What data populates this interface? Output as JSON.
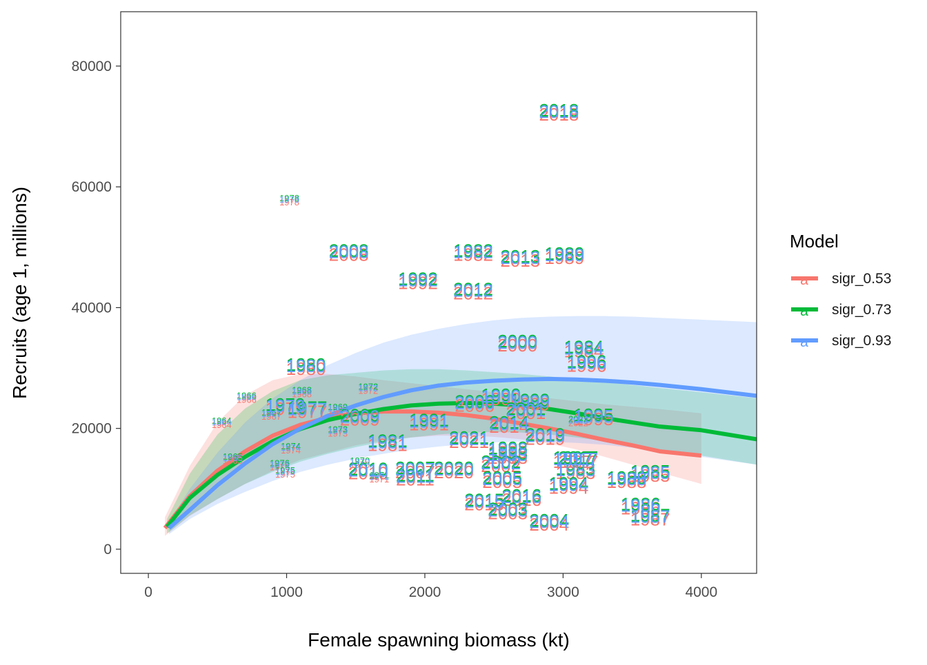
{
  "chart_data": {
    "type": "scatter",
    "title": "",
    "xlabel": "Female spawning biomass (kt)",
    "ylabel": "Recruits (age 1, millions)",
    "xlim": [
      -200,
      4400
    ],
    "ylim": [
      -4000,
      89000
    ],
    "x_ticks": [
      0,
      1000,
      2000,
      3000,
      4000
    ],
    "x_tick_labels": [
      "0",
      "1000",
      "2000",
      "3000",
      "4000"
    ],
    "y_ticks": [
      0,
      20000,
      40000,
      60000,
      80000
    ],
    "y_tick_labels": [
      "0",
      "20000",
      "40000",
      "60000",
      "80000"
    ],
    "grid": false,
    "legend": {
      "title": "Model",
      "position": "right",
      "key_glyph": "a",
      "entries": [
        {
          "label": "sigr_0.53",
          "color": "#F8766D"
        },
        {
          "label": "sigr_0.73",
          "color": "#00BA38"
        },
        {
          "label": "sigr_0.93",
          "color": "#619CFF"
        }
      ]
    },
    "series": [
      {
        "name": "sigr_0.53",
        "color": "#F8766D",
        "curve": [
          [
            120,
            3500
          ],
          [
            300,
            8800
          ],
          [
            500,
            13000
          ],
          [
            700,
            16200
          ],
          [
            900,
            18800
          ],
          [
            1100,
            20600
          ],
          [
            1300,
            21800
          ],
          [
            1500,
            22500
          ],
          [
            1700,
            22800
          ],
          [
            1900,
            22800
          ],
          [
            2100,
            22600
          ],
          [
            2300,
            22200
          ],
          [
            2500,
            21600
          ],
          [
            2700,
            20800
          ],
          [
            2900,
            20000
          ],
          [
            3100,
            19100
          ],
          [
            3300,
            18100
          ],
          [
            3500,
            17200
          ],
          [
            3700,
            16200
          ],
          [
            4000,
            15500
          ]
        ],
        "band_upper": [
          [
            120,
            5300
          ],
          [
            300,
            13800
          ],
          [
            500,
            21000
          ],
          [
            700,
            25500
          ],
          [
            900,
            28000
          ],
          [
            1100,
            29000
          ],
          [
            1300,
            29000
          ],
          [
            1500,
            28600
          ],
          [
            1700,
            28000
          ],
          [
            1900,
            27500
          ],
          [
            2100,
            27000
          ],
          [
            2300,
            26500
          ],
          [
            2500,
            26000
          ],
          [
            2700,
            25500
          ],
          [
            2900,
            25000
          ],
          [
            3100,
            24500
          ],
          [
            3300,
            24000
          ],
          [
            3500,
            23600
          ],
          [
            3700,
            23200
          ],
          [
            4000,
            22500
          ]
        ],
        "band_lower": [
          [
            120,
            2200
          ],
          [
            300,
            5500
          ],
          [
            500,
            8300
          ],
          [
            700,
            10800
          ],
          [
            900,
            13000
          ],
          [
            1100,
            14800
          ],
          [
            1300,
            16000
          ],
          [
            1500,
            17200
          ],
          [
            1700,
            18000
          ],
          [
            1900,
            18500
          ],
          [
            2100,
            18800
          ],
          [
            2300,
            18800
          ],
          [
            2500,
            18600
          ],
          [
            2700,
            18200
          ],
          [
            2900,
            17500
          ],
          [
            3100,
            16500
          ],
          [
            3300,
            15300
          ],
          [
            3500,
            14000
          ],
          [
            3700,
            12700
          ],
          [
            4000,
            10800
          ]
        ]
      },
      {
        "name": "sigr_0.73",
        "color": "#00BA38",
        "curve": [
          [
            135,
            3700
          ],
          [
            300,
            8500
          ],
          [
            500,
            12300
          ],
          [
            700,
            15300
          ],
          [
            900,
            17900
          ],
          [
            1100,
            19900
          ],
          [
            1300,
            21400
          ],
          [
            1500,
            22400
          ],
          [
            1700,
            23200
          ],
          [
            1900,
            23800
          ],
          [
            2100,
            24100
          ],
          [
            2300,
            24200
          ],
          [
            2500,
            24100
          ],
          [
            2700,
            23800
          ],
          [
            2900,
            23200
          ],
          [
            3100,
            22500
          ],
          [
            3300,
            21700
          ],
          [
            3500,
            21000
          ],
          [
            3700,
            20300
          ],
          [
            4000,
            19700
          ],
          [
            4400,
            18200
          ]
        ],
        "band_upper": [
          [
            135,
            5000
          ],
          [
            300,
            12500
          ],
          [
            500,
            19000
          ],
          [
            700,
            23300
          ],
          [
            900,
            26200
          ],
          [
            1100,
            28000
          ],
          [
            1300,
            28800
          ],
          [
            1500,
            29200
          ],
          [
            1700,
            29600
          ],
          [
            1900,
            29800
          ],
          [
            2100,
            29800
          ],
          [
            2300,
            29600
          ],
          [
            2500,
            29300
          ],
          [
            2700,
            29000
          ],
          [
            2900,
            28600
          ],
          [
            3100,
            28200
          ],
          [
            3300,
            27700
          ],
          [
            3500,
            27200
          ],
          [
            3700,
            26700
          ],
          [
            4000,
            26000
          ],
          [
            4400,
            25000
          ]
        ],
        "band_lower": [
          [
            135,
            2600
          ],
          [
            300,
            5600
          ],
          [
            500,
            8300
          ],
          [
            700,
            10800
          ],
          [
            900,
            12800
          ],
          [
            1100,
            14500
          ],
          [
            1300,
            15800
          ],
          [
            1500,
            16900
          ],
          [
            1700,
            17800
          ],
          [
            1900,
            18500
          ],
          [
            2100,
            19000
          ],
          [
            2300,
            19300
          ],
          [
            2500,
            19400
          ],
          [
            2700,
            19300
          ],
          [
            2900,
            19000
          ],
          [
            3100,
            18500
          ],
          [
            3300,
            17900
          ],
          [
            3500,
            17200
          ],
          [
            3700,
            16400
          ],
          [
            4000,
            15500
          ],
          [
            4400,
            14000
          ]
        ]
      },
      {
        "name": "sigr_0.93",
        "color": "#619CFF",
        "curve": [
          [
            150,
            3500
          ],
          [
            300,
            6500
          ],
          [
            500,
            10600
          ],
          [
            700,
            14200
          ],
          [
            900,
            17400
          ],
          [
            1100,
            20000
          ],
          [
            1300,
            22100
          ],
          [
            1500,
            23800
          ],
          [
            1700,
            25200
          ],
          [
            1900,
            26300
          ],
          [
            2100,
            27100
          ],
          [
            2300,
            27600
          ],
          [
            2500,
            27900
          ],
          [
            2700,
            28100
          ],
          [
            2900,
            28200
          ],
          [
            3100,
            28100
          ],
          [
            3300,
            27900
          ],
          [
            3500,
            27600
          ],
          [
            3700,
            27200
          ],
          [
            4000,
            26500
          ],
          [
            4400,
            25400
          ]
        ],
        "band_upper": [
          [
            150,
            4500
          ],
          [
            300,
            10000
          ],
          [
            500,
            16000
          ],
          [
            700,
            21000
          ],
          [
            900,
            25000
          ],
          [
            1100,
            28000
          ],
          [
            1300,
            30500
          ],
          [
            1500,
            32500
          ],
          [
            1700,
            34200
          ],
          [
            1900,
            35500
          ],
          [
            2100,
            36500
          ],
          [
            2300,
            37300
          ],
          [
            2500,
            37900
          ],
          [
            2700,
            38300
          ],
          [
            2900,
            38500
          ],
          [
            3100,
            38600
          ],
          [
            3300,
            38600
          ],
          [
            3500,
            38500
          ],
          [
            3700,
            38300
          ],
          [
            4000,
            38000
          ],
          [
            4400,
            37600
          ]
        ],
        "band_lower": [
          [
            150,
            2500
          ],
          [
            300,
            5000
          ],
          [
            500,
            7500
          ],
          [
            700,
            9500
          ],
          [
            900,
            11300
          ],
          [
            1100,
            12800
          ],
          [
            1300,
            14000
          ],
          [
            1500,
            15000
          ],
          [
            1700,
            15800
          ],
          [
            1900,
            16500
          ],
          [
            2100,
            17000
          ],
          [
            2300,
            17400
          ],
          [
            2500,
            17700
          ],
          [
            2700,
            17800
          ],
          [
            2900,
            17800
          ],
          [
            3100,
            17600
          ],
          [
            3300,
            17300
          ],
          [
            3500,
            16800
          ],
          [
            3700,
            16200
          ],
          [
            4000,
            15300
          ],
          [
            4400,
            14000
          ]
        ]
      }
    ],
    "year_labels": [
      {
        "label": "1964",
        "x": 530,
        "y": 20900,
        "size": "small"
      },
      {
        "label": "1965",
        "x": 610,
        "y": 15000,
        "size": "small"
      },
      {
        "label": "1966",
        "x": 710,
        "y": 25100,
        "size": "small"
      },
      {
        "label": "1967",
        "x": 890,
        "y": 22300,
        "size": "small"
      },
      {
        "label": "1968",
        "x": 1110,
        "y": 26000,
        "size": "small"
      },
      {
        "label": "1969",
        "x": 1370,
        "y": 23200,
        "size": "small"
      },
      {
        "label": "1970",
        "x": 1530,
        "y": 14300,
        "size": "small"
      },
      {
        "label": "1971",
        "x": 1670,
        "y": 11900,
        "size": "small"
      },
      {
        "label": "1972",
        "x": 1590,
        "y": 26600,
        "size": "small"
      },
      {
        "label": "1973",
        "x": 1370,
        "y": 19500,
        "size": "small"
      },
      {
        "label": "1974",
        "x": 1030,
        "y": 16700,
        "size": "small"
      },
      {
        "label": "1975",
        "x": 990,
        "y": 12700,
        "size": "small"
      },
      {
        "label": "1976",
        "x": 950,
        "y": 13900,
        "size": "small"
      },
      {
        "label": "1977",
        "x": 1150,
        "y": 23000,
        "size": "large"
      },
      {
        "label": "1978",
        "x": 1020,
        "y": 57800,
        "size": "small"
      },
      {
        "label": "1979",
        "x": 990,
        "y": 23500,
        "size": "large"
      },
      {
        "label": "1980",
        "x": 1140,
        "y": 30100,
        "size": "large"
      },
      {
        "label": "1981",
        "x": 1730,
        "y": 17500,
        "size": "large"
      },
      {
        "label": "1982",
        "x": 2350,
        "y": 49000,
        "size": "large"
      },
      {
        "label": "1983",
        "x": 3090,
        "y": 12900,
        "size": "large"
      },
      {
        "label": "1984",
        "x": 3150,
        "y": 33000,
        "size": "large"
      },
      {
        "label": "1985",
        "x": 3630,
        "y": 12400,
        "size": "large"
      },
      {
        "label": "1986",
        "x": 3560,
        "y": 7000,
        "size": "large"
      },
      {
        "label": "1987",
        "x": 3630,
        "y": 5200,
        "size": "large"
      },
      {
        "label": "1988",
        "x": 3460,
        "y": 11400,
        "size": "large"
      },
      {
        "label": "1989",
        "x": 3010,
        "y": 48500,
        "size": "large"
      },
      {
        "label": "1990",
        "x": 2550,
        "y": 25100,
        "size": "large"
      },
      {
        "label": "1991",
        "x": 2030,
        "y": 20900,
        "size": "large"
      },
      {
        "label": "1992",
        "x": 1950,
        "y": 44300,
        "size": "large"
      },
      {
        "label": "1993",
        "x": 2600,
        "y": 15400,
        "size": "large"
      },
      {
        "label": "1994",
        "x": 3040,
        "y": 10400,
        "size": "large"
      },
      {
        "label": "1995",
        "x": 3220,
        "y": 21800,
        "size": "large"
      },
      {
        "label": "1996",
        "x": 3170,
        "y": 30600,
        "size": "large"
      },
      {
        "label": "1997",
        "x": 3070,
        "y": 14700,
        "size": "large"
      },
      {
        "label": "1998",
        "x": 2600,
        "y": 16300,
        "size": "large"
      },
      {
        "label": "1999",
        "x": 2760,
        "y": 24200,
        "size": "large"
      },
      {
        "label": "2000",
        "x": 2670,
        "y": 34000,
        "size": "large"
      },
      {
        "label": "2001",
        "x": 2730,
        "y": 22800,
        "size": "large"
      },
      {
        "label": "2002",
        "x": 2550,
        "y": 14000,
        "size": "large"
      },
      {
        "label": "2003",
        "x": 2600,
        "y": 6200,
        "size": "large"
      },
      {
        "label": "2004",
        "x": 2900,
        "y": 4300,
        "size": "large"
      },
      {
        "label": "2005",
        "x": 2560,
        "y": 11400,
        "size": "large"
      },
      {
        "label": "2006",
        "x": 2360,
        "y": 24000,
        "size": "large"
      },
      {
        "label": "2007",
        "x": 1930,
        "y": 13000,
        "size": "large"
      },
      {
        "label": "2008",
        "x": 1450,
        "y": 49000,
        "size": "large"
      },
      {
        "label": "2009",
        "x": 1530,
        "y": 21700,
        "size": "large"
      },
      {
        "label": "2010",
        "x": 1590,
        "y": 12800,
        "size": "large"
      },
      {
        "label": "2011",
        "x": 1930,
        "y": 11800,
        "size": "large"
      },
      {
        "label": "2012",
        "x": 2350,
        "y": 42600,
        "size": "large"
      },
      {
        "label": "2013",
        "x": 2690,
        "y": 48000,
        "size": "large"
      },
      {
        "label": "2014",
        "x": 2610,
        "y": 20500,
        "size": "large"
      },
      {
        "label": "2015",
        "x": 2430,
        "y": 7700,
        "size": "large"
      },
      {
        "label": "2016",
        "x": 2700,
        "y": 8400,
        "size": "large"
      },
      {
        "label": "2017",
        "x": 3110,
        "y": 14700,
        "size": "large"
      },
      {
        "label": "2018",
        "x": 2970,
        "y": 72200,
        "size": "large"
      },
      {
        "label": "2019",
        "x": 2870,
        "y": 18500,
        "size": "large"
      },
      {
        "label": "2020",
        "x": 2210,
        "y": 13000,
        "size": "large"
      },
      {
        "label": "2021",
        "x": 2320,
        "y": 18000,
        "size": "large"
      },
      {
        "label": "2022",
        "x": 3110,
        "y": 21200,
        "size": "small"
      }
    ]
  }
}
